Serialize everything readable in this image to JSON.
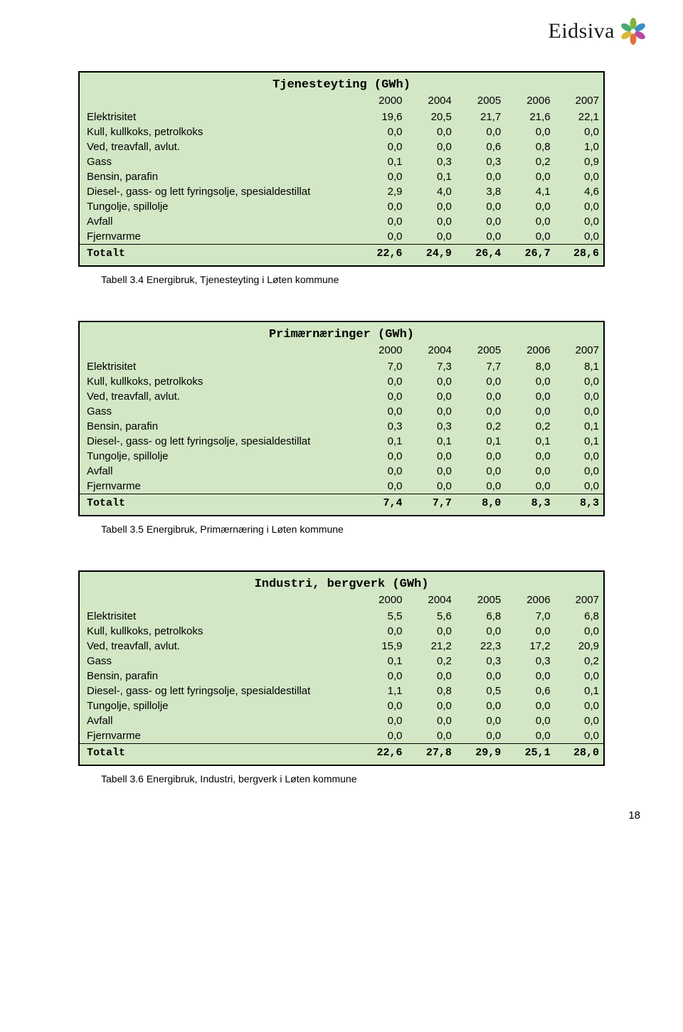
{
  "logo_text": "Eidsiva",
  "page_number": "18",
  "colors": {
    "table_bg": "#d2e7c5",
    "border": "#000000",
    "text": "#000000"
  },
  "petals": [
    {
      "color": "#7fb53a",
      "rot": 0
    },
    {
      "color": "#3a8fc6",
      "rot": 60
    },
    {
      "color": "#b84aa0",
      "rot": 120
    },
    {
      "color": "#e07040",
      "rot": 180
    },
    {
      "color": "#d8b83a",
      "rot": 240
    },
    {
      "color": "#4aa870",
      "rot": 300
    }
  ],
  "tables": [
    {
      "title": "Tjenesteyting  (GWh)",
      "years": [
        "2000",
        "2004",
        "2005",
        "2006",
        "2007"
      ],
      "rows": [
        {
          "label": "Elektrisitet",
          "v": [
            "19,6",
            "20,5",
            "21,7",
            "21,6",
            "22,1"
          ]
        },
        {
          "label": "Kull, kullkoks, petrolkoks",
          "v": [
            "0,0",
            "0,0",
            "0,0",
            "0,0",
            "0,0"
          ]
        },
        {
          "label": "Ved, treavfall, avlut.",
          "v": [
            "0,0",
            "0,0",
            "0,6",
            "0,8",
            "1,0"
          ]
        },
        {
          "label": "Gass",
          "v": [
            "0,1",
            "0,3",
            "0,3",
            "0,2",
            "0,9"
          ]
        },
        {
          "label": "Bensin, parafin",
          "v": [
            "0,0",
            "0,1",
            "0,0",
            "0,0",
            "0,0"
          ]
        },
        {
          "label": "Diesel-, gass- og lett fyringsolje, spesialdestillat",
          "v": [
            "2,9",
            "4,0",
            "3,8",
            "4,1",
            "4,6"
          ]
        },
        {
          "label": "Tungolje, spillolje",
          "v": [
            "0,0",
            "0,0",
            "0,0",
            "0,0",
            "0,0"
          ]
        },
        {
          "label": "Avfall",
          "v": [
            "0,0",
            "0,0",
            "0,0",
            "0,0",
            "0,0"
          ]
        },
        {
          "label": "Fjernvarme",
          "v": [
            "0,0",
            "0,0",
            "0,0",
            "0,0",
            "0,0"
          ]
        }
      ],
      "total": {
        "label": "Totalt",
        "v": [
          "22,6",
          "24,9",
          "26,4",
          "26,7",
          "28,6"
        ]
      },
      "caption": "Tabell 3.4  Energibruk, Tjenesteyting i Løten kommune"
    },
    {
      "title": "Primærnæringer  (GWh)",
      "years": [
        "2000",
        "2004",
        "2005",
        "2006",
        "2007"
      ],
      "rows": [
        {
          "label": "Elektrisitet",
          "v": [
            "7,0",
            "7,3",
            "7,7",
            "8,0",
            "8,1"
          ]
        },
        {
          "label": "Kull, kullkoks, petrolkoks",
          "v": [
            "0,0",
            "0,0",
            "0,0",
            "0,0",
            "0,0"
          ]
        },
        {
          "label": "Ved, treavfall, avlut.",
          "v": [
            "0,0",
            "0,0",
            "0,0",
            "0,0",
            "0,0"
          ]
        },
        {
          "label": "Gass",
          "v": [
            "0,0",
            "0,0",
            "0,0",
            "0,0",
            "0,0"
          ]
        },
        {
          "label": "Bensin, parafin",
          "v": [
            "0,3",
            "0,3",
            "0,2",
            "0,2",
            "0,1"
          ]
        },
        {
          "label": "Diesel-, gass- og lett fyringsolje, spesialdestillat",
          "v": [
            "0,1",
            "0,1",
            "0,1",
            "0,1",
            "0,1"
          ]
        },
        {
          "label": "Tungolje, spillolje",
          "v": [
            "0,0",
            "0,0",
            "0,0",
            "0,0",
            "0,0"
          ]
        },
        {
          "label": "Avfall",
          "v": [
            "0,0",
            "0,0",
            "0,0",
            "0,0",
            "0,0"
          ]
        },
        {
          "label": "Fjernvarme",
          "v": [
            "0,0",
            "0,0",
            "0,0",
            "0,0",
            "0,0"
          ]
        }
      ],
      "total": {
        "label": "Totalt",
        "v": [
          "7,4",
          "7,7",
          "8,0",
          "8,3",
          "8,3"
        ]
      },
      "caption": "Tabell 3.5  Energibruk, Primærnæring i Løten kommune"
    },
    {
      "title": "Industri, bergverk  (GWh)",
      "years": [
        "2000",
        "2004",
        "2005",
        "2006",
        "2007"
      ],
      "rows": [
        {
          "label": "Elektrisitet",
          "v": [
            "5,5",
            "5,6",
            "6,8",
            "7,0",
            "6,8"
          ]
        },
        {
          "label": "Kull, kullkoks, petrolkoks",
          "v": [
            "0,0",
            "0,0",
            "0,0",
            "0,0",
            "0,0"
          ]
        },
        {
          "label": "Ved, treavfall, avlut.",
          "v": [
            "15,9",
            "21,2",
            "22,3",
            "17,2",
            "20,9"
          ]
        },
        {
          "label": "Gass",
          "v": [
            "0,1",
            "0,2",
            "0,3",
            "0,3",
            "0,2"
          ]
        },
        {
          "label": "Bensin, parafin",
          "v": [
            "0,0",
            "0,0",
            "0,0",
            "0,0",
            "0,0"
          ]
        },
        {
          "label": "Diesel-, gass- og lett fyringsolje, spesialdestillat",
          "v": [
            "1,1",
            "0,8",
            "0,5",
            "0,6",
            "0,1"
          ]
        },
        {
          "label": "Tungolje, spillolje",
          "v": [
            "0,0",
            "0,0",
            "0,0",
            "0,0",
            "0,0"
          ]
        },
        {
          "label": "Avfall",
          "v": [
            "0,0",
            "0,0",
            "0,0",
            "0,0",
            "0,0"
          ]
        },
        {
          "label": "Fjernvarme",
          "v": [
            "0,0",
            "0,0",
            "0,0",
            "0,0",
            "0,0"
          ]
        }
      ],
      "total": {
        "label": "Totalt",
        "v": [
          "22,6",
          "27,8",
          "29,9",
          "25,1",
          "28,0"
        ]
      },
      "caption": "Tabell 3.6  Energibruk, Industri, bergverk i Løten kommune"
    }
  ]
}
